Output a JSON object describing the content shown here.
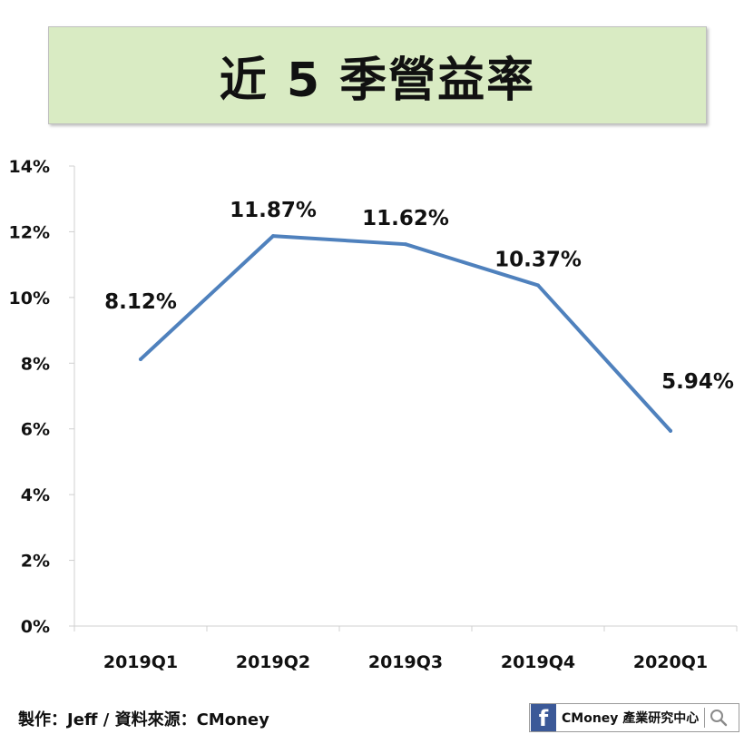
{
  "header": {
    "title": "近 5 季營益率"
  },
  "footer": {
    "credit": "製作：Jeff / 資料來源：CMoney",
    "badge_icon": "facebook-icon",
    "badge_text": "CMoney 產業研究中心",
    "badge_search_icon": "search-icon"
  },
  "chart_data": {
    "type": "line",
    "categories": [
      "2019Q1",
      "2019Q2",
      "2019Q3",
      "2019Q4",
      "2020Q1"
    ],
    "series": [
      {
        "values": [
          8.12,
          11.87,
          11.62,
          10.37,
          5.94
        ],
        "color": "#4f81bd"
      }
    ],
    "data_labels": [
      "8.12%",
      "11.87%",
      "11.62%",
      "10.37%",
      "5.94%"
    ],
    "y_ticks": [
      0,
      2,
      4,
      6,
      8,
      10,
      12,
      14
    ],
    "y_tick_labels": [
      "0%",
      "2%",
      "4%",
      "6%",
      "8%",
      "10%",
      "12%",
      "14%"
    ],
    "ylim": [
      0,
      14
    ],
    "grid": false,
    "legend": "none"
  }
}
